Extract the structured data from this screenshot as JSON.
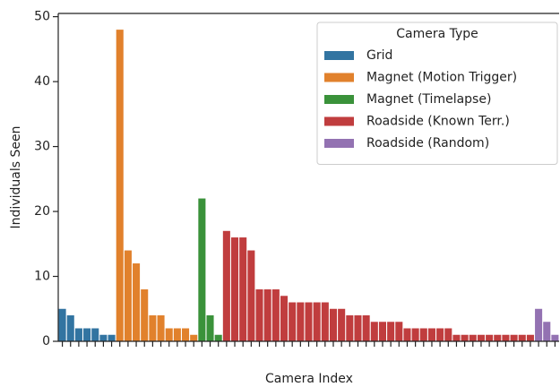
{
  "chart_data": {
    "type": "bar",
    "xlabel": "Camera Index",
    "ylabel": "Individuals Seen",
    "legend_title": "Camera Type",
    "legend": "upper right",
    "categories": [
      null,
      null,
      null,
      null,
      null,
      null,
      null,
      null,
      null,
      null,
      null,
      null,
      null,
      null,
      null,
      null,
      null,
      null,
      null,
      null,
      null,
      null,
      null,
      null,
      null,
      null,
      null,
      null,
      null,
      null,
      null,
      null,
      null,
      null,
      null,
      null,
      null,
      null,
      null,
      null,
      null,
      null,
      null,
      null,
      null,
      null,
      null,
      null,
      null,
      null,
      null,
      null,
      null,
      null,
      null,
      null,
      null,
      null,
      null,
      null,
      null
    ],
    "series": [
      {
        "name": "Grid",
        "color": "#3274a1",
        "values": [
          5,
          4,
          2,
          2,
          2,
          1,
          1,
          null,
          null,
          null,
          null,
          null,
          null,
          null,
          null,
          null,
          null,
          null,
          null,
          null,
          null,
          null,
          null,
          null,
          null,
          null,
          null,
          null,
          null,
          null,
          null,
          null,
          null,
          null,
          null,
          null,
          null,
          null,
          null,
          null,
          null,
          null,
          null,
          null,
          null,
          null,
          null,
          null,
          null,
          null,
          null,
          null,
          null,
          null,
          null,
          null,
          null,
          null,
          null,
          null,
          null
        ]
      },
      {
        "name": "Magnet (Motion Trigger)",
        "color": "#e1812c",
        "values": [
          null,
          null,
          null,
          null,
          null,
          null,
          null,
          48,
          14,
          12,
          8,
          4,
          4,
          2,
          2,
          2,
          1,
          null,
          null,
          null,
          null,
          null,
          null,
          null,
          null,
          null,
          null,
          null,
          null,
          null,
          null,
          null,
          null,
          null,
          null,
          null,
          null,
          null,
          null,
          null,
          null,
          null,
          null,
          null,
          null,
          null,
          null,
          null,
          null,
          null,
          null,
          null,
          null,
          null,
          null,
          null,
          null,
          null,
          null,
          null,
          null
        ]
      },
      {
        "name": "Magnet (Timelapse)",
        "color": "#3a923a",
        "values": [
          null,
          null,
          null,
          null,
          null,
          null,
          null,
          null,
          null,
          null,
          null,
          null,
          null,
          null,
          null,
          null,
          null,
          22,
          4,
          1,
          null,
          null,
          null,
          null,
          null,
          null,
          null,
          null,
          null,
          null,
          null,
          null,
          null,
          null,
          null,
          null,
          null,
          null,
          null,
          null,
          null,
          null,
          null,
          null,
          null,
          null,
          null,
          null,
          null,
          null,
          null,
          null,
          null,
          null,
          null,
          null,
          null,
          null,
          null,
          null,
          null
        ]
      },
      {
        "name": "Roadside (Known Terr.)",
        "color": "#c03d3e",
        "values": [
          null,
          null,
          null,
          null,
          null,
          null,
          null,
          null,
          null,
          null,
          null,
          null,
          null,
          null,
          null,
          null,
          null,
          null,
          null,
          null,
          17,
          16,
          16,
          14,
          8,
          8,
          8,
          7,
          6,
          6,
          6,
          6,
          6,
          5,
          5,
          4,
          4,
          4,
          3,
          3,
          3,
          3,
          2,
          2,
          2,
          2,
          2,
          2,
          1,
          1,
          1,
          1,
          1,
          1,
          1,
          1,
          1,
          1,
          null,
          null,
          null
        ]
      },
      {
        "name": "Roadside (Random)",
        "color": "#9372b2",
        "values": [
          null,
          null,
          null,
          null,
          null,
          null,
          null,
          null,
          null,
          null,
          null,
          null,
          null,
          null,
          null,
          null,
          null,
          null,
          null,
          null,
          null,
          null,
          null,
          null,
          null,
          null,
          null,
          null,
          null,
          null,
          null,
          null,
          null,
          null,
          null,
          null,
          null,
          null,
          null,
          null,
          null,
          null,
          null,
          null,
          null,
          null,
          null,
          null,
          null,
          null,
          null,
          null,
          null,
          null,
          null,
          null,
          null,
          null,
          5,
          3,
          1
        ]
      }
    ],
    "ylim": [
      0,
      50.5
    ],
    "yticks": [
      0,
      10,
      20,
      30,
      40,
      50
    ]
  }
}
